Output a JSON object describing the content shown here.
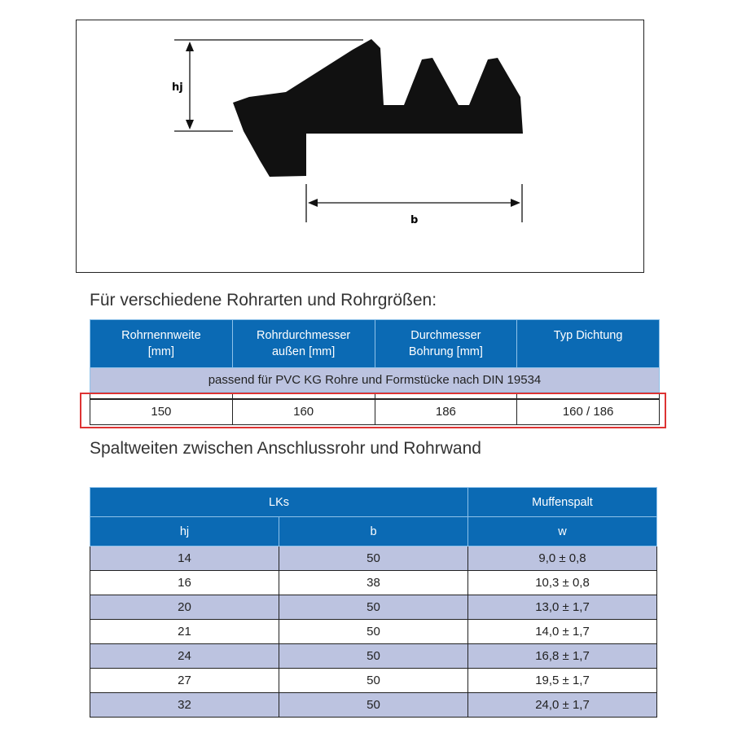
{
  "diagram": {
    "label_hj": "hj",
    "label_b": "b"
  },
  "section1": {
    "title": "Für verschiedene Rohrarten und Rohrgrößen:",
    "headers": [
      [
        "Rohrnennweite",
        "[mm]"
      ],
      [
        "Rohrdurchmesser",
        "außen [mm]"
      ],
      [
        "Durchmesser",
        "Bohrung [mm]"
      ],
      [
        "Typ Dichtung",
        ""
      ]
    ],
    "subheader": "passend für PVC KG Rohre und Formstücke nach DIN 19534",
    "row": [
      "150",
      "160",
      "186",
      "160 / 186"
    ]
  },
  "section2": {
    "title": "Spaltweiten zwischen Anschlussrohr und Rohrwand",
    "group_headers": [
      "LKs",
      "Muffenspalt"
    ],
    "headers": [
      "hj",
      "b",
      "w"
    ],
    "rows": [
      [
        "14",
        "50",
        "9,0 ± 0,8"
      ],
      [
        "16",
        "38",
        "10,3 ± 0,8"
      ],
      [
        "20",
        "50",
        "13,0 ± 1,7"
      ],
      [
        "21",
        "50",
        "14,0 ± 1,7"
      ],
      [
        "24",
        "50",
        "16,8 ± 1,7"
      ],
      [
        "27",
        "50",
        "19,5 ± 1,7"
      ],
      [
        "32",
        "50",
        "24,0 ± 1,7"
      ]
    ]
  },
  "colors": {
    "header_blue": "#0b6ab4",
    "row_lavender": "#bcc3e0",
    "highlight_red": "#dd3333"
  }
}
